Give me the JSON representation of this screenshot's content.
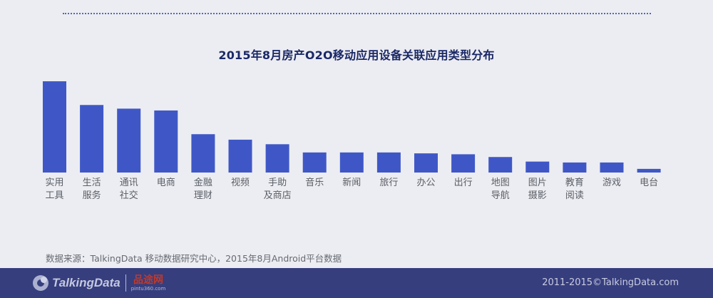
{
  "chart_data": {
    "type": "bar",
    "title": "2015年8月房产O2O移动应用设备关联应用类型分布",
    "categories": [
      "实用\n工具",
      "生活\n服务",
      "通讯\n社交",
      "电商",
      "金融\n理财",
      "视频",
      "手助\n及商店",
      "音乐",
      "新闻",
      "旅行",
      "办公",
      "出行",
      "地图\n导航",
      "图片\n摄影",
      "教育\n阅读",
      "游戏",
      "电台"
    ],
    "values": [
      100,
      74,
      70,
      68,
      42,
      36,
      31,
      22,
      22,
      22,
      21,
      20,
      17,
      12,
      11,
      11,
      4
    ],
    "ylim": [
      0,
      100
    ],
    "grid": false,
    "legend": "none",
    "bar_color": "#3f57c6"
  },
  "source_text": "数据来源：TalkingData 移动数据研究中心，2015年8月Android平台数据",
  "footer": {
    "logo_text": "TalkingData",
    "partner_name": "品途网",
    "partner_sub": "pintu360.com",
    "copyright": "2011-2015©TalkingData.com"
  }
}
